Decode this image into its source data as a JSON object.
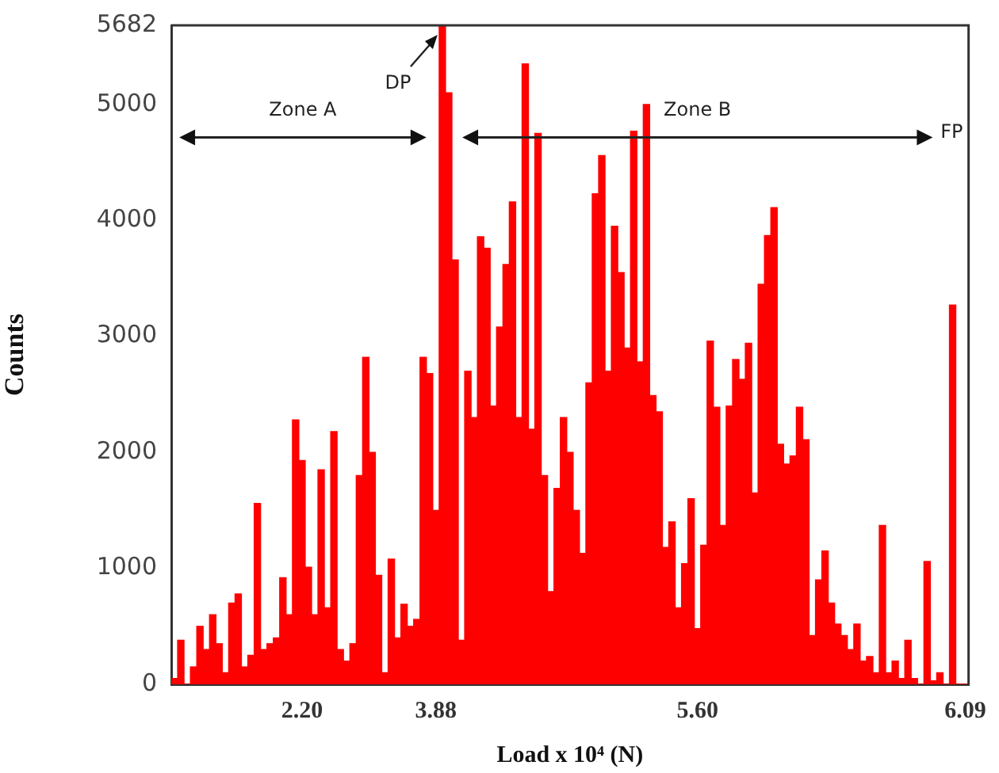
{
  "chart_data": {
    "type": "bar",
    "xlabel": "Load x 10⁴ (N)",
    "ylabel": "Counts",
    "categories": [
      null,
      null,
      null,
      null,
      null,
      null,
      null,
      null,
      null,
      null,
      null,
      null,
      null,
      null,
      null,
      null,
      null,
      null,
      null,
      null,
      "2.20",
      null,
      null,
      null,
      null,
      null,
      null,
      null,
      null,
      null,
      null,
      null,
      null,
      null,
      null,
      null,
      null,
      null,
      null,
      null,
      null,
      "3.88",
      null,
      null,
      null,
      null,
      null,
      null,
      null,
      null,
      null,
      null,
      null,
      null,
      null,
      null,
      null,
      null,
      null,
      null,
      null,
      null,
      null,
      null,
      null,
      null,
      null,
      null,
      null,
      null,
      null,
      null,
      null,
      null,
      null,
      null,
      null,
      null,
      null,
      null,
      null,
      null,
      "5.60",
      null,
      null,
      null,
      null,
      null,
      null,
      null,
      null,
      null,
      null,
      null,
      null,
      null,
      null,
      null,
      null,
      null,
      null,
      null,
      null,
      null,
      null,
      null,
      null,
      null,
      null,
      null,
      null,
      null,
      null,
      null,
      null,
      null,
      null,
      null,
      null,
      null,
      null,
      null,
      null,
      null,
      "6.09"
    ],
    "values": [
      50,
      380,
      0,
      150,
      500,
      300,
      600,
      350,
      100,
      700,
      780,
      150,
      250,
      1560,
      300,
      350,
      400,
      920,
      600,
      2280,
      1930,
      1010,
      600,
      1850,
      660,
      2180,
      300,
      200,
      350,
      1800,
      2820,
      2000,
      940,
      100,
      1080,
      400,
      690,
      500,
      560,
      2820,
      2680,
      1500,
      5682,
      5100,
      3660,
      380,
      2700,
      2300,
      3860,
      3760,
      2400,
      3080,
      3620,
      4160,
      2300,
      5350,
      2200,
      4750,
      1800,
      800,
      1690,
      2300,
      2000,
      1500,
      1130,
      2600,
      4230,
      4560,
      2700,
      3950,
      3550,
      2900,
      4770,
      2780,
      5000,
      2490,
      2350,
      1180,
      1400,
      660,
      1040,
      1600,
      480,
      1200,
      2960,
      2390,
      1370,
      2400,
      2800,
      2630,
      2940,
      1650,
      3450,
      3870,
      4110,
      2070,
      1900,
      1970,
      2390,
      2110,
      420,
      900,
      1150,
      700,
      520,
      420,
      300,
      520,
      200,
      240,
      100,
      1370,
      100,
      200,
      50,
      380,
      50,
      0,
      1060,
      30,
      100,
      0,
      3270,
      0,
      0
    ],
    "color": "#ff0000",
    "ylim": [
      0,
      5682
    ],
    "yticks": [
      0,
      1000,
      2000,
      3000,
      4000,
      5000,
      5682
    ],
    "grid": false,
    "legend": false,
    "annotations": [
      "Zone A",
      "Zone B",
      "DP",
      "FP"
    ]
  }
}
